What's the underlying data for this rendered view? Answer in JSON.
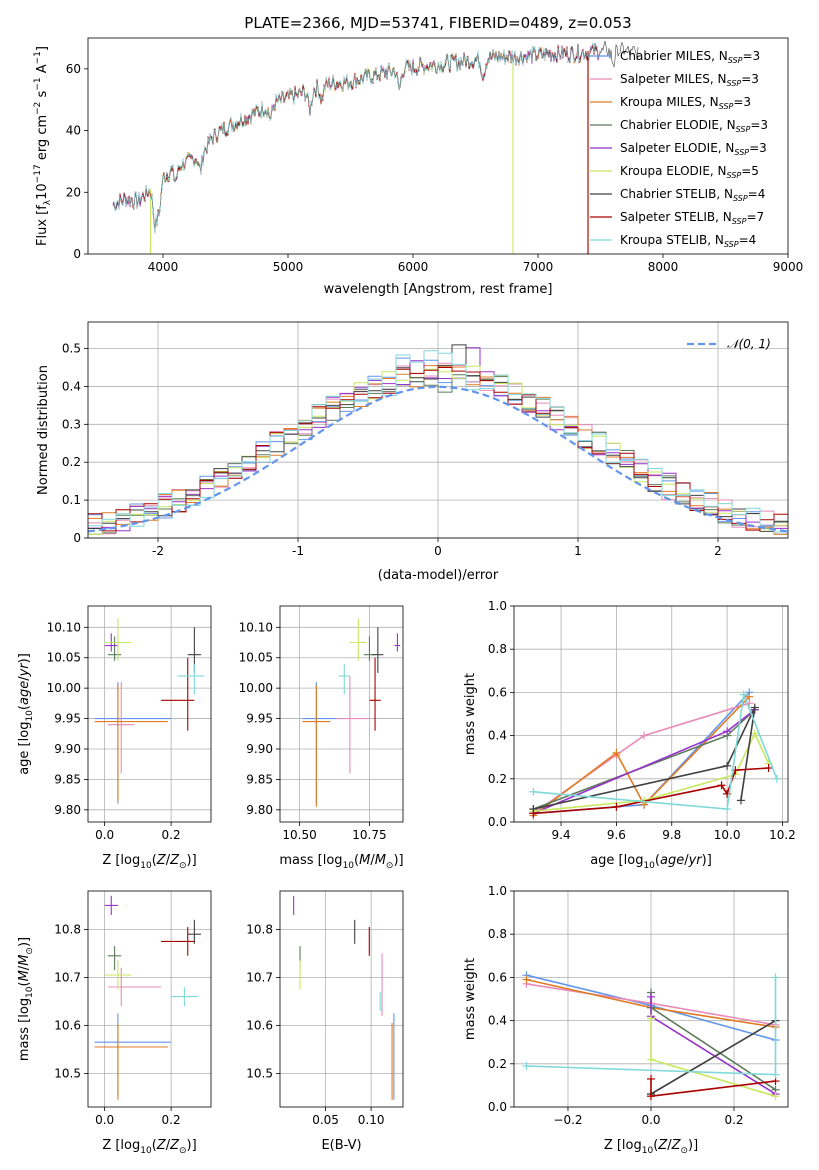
{
  "page": {
    "title": "PLATE=2366, MJD=53741, FIBERID=0489, z=0.053"
  },
  "colors": {
    "series": [
      "#6495ED",
      "#E88BB8",
      "#E07B24",
      "#5B7B5B",
      "#9932CC",
      "#C8E860",
      "#404040",
      "#AA0000",
      "#80D8D8"
    ]
  },
  "chart_data": [
    {
      "id": "spectrum",
      "type": "line",
      "title": "PLATE=2366, MJD=53741, FIBERID=0489, z=0.053",
      "xlabel": "wavelength [Angstrom, rest frame]",
      "ylabel_parts": [
        "Flux [f",
        "λ",
        "10",
        "−17",
        " erg cm",
        "−2",
        " s",
        "−1",
        " A",
        "−1",
        "]"
      ],
      "xlim": [
        3400,
        9000
      ],
      "ylim": [
        0,
        70
      ],
      "xticks": [
        4000,
        5000,
        6000,
        7000,
        8000,
        9000
      ],
      "yticks": [
        0,
        20,
        40,
        60
      ],
      "grid": false,
      "legend_position": "top-right",
      "continuum": [
        [
          3600,
          16
        ],
        [
          3700,
          18
        ],
        [
          3800,
          17
        ],
        [
          3900,
          21
        ],
        [
          3950,
          18
        ],
        [
          4000,
          25
        ],
        [
          4100,
          28
        ],
        [
          4200,
          30
        ],
        [
          4300,
          32
        ],
        [
          4400,
          38
        ],
        [
          4500,
          41
        ],
        [
          4700,
          45
        ],
        [
          4900,
          49
        ],
        [
          5100,
          52
        ],
        [
          5300,
          55
        ],
        [
          5500,
          56
        ],
        [
          5700,
          58
        ],
        [
          5900,
          60
        ],
        [
          6100,
          61
        ],
        [
          6300,
          62
        ],
        [
          6500,
          63
        ],
        [
          6700,
          64
        ],
        [
          6900,
          64
        ],
        [
          7100,
          65
        ],
        [
          7300,
          65
        ],
        [
          7500,
          66
        ],
        [
          7700,
          66
        ],
        [
          7800,
          65
        ]
      ],
      "series": [
        {
          "name": "Chabrier MILES",
          "nssp": "3",
          "x_range": [
            3600,
            7500
          ],
          "drops": []
        },
        {
          "name": "Salpeter MILES",
          "nssp": "3",
          "x_range": [
            3600,
            7500
          ],
          "drops": []
        },
        {
          "name": "Kroupa MILES",
          "nssp": "3",
          "x_range": [
            3600,
            7500
          ],
          "drops": [
            7400
          ]
        },
        {
          "name": "Chabrier ELODIE",
          "nssp": "3",
          "x_range": [
            3600,
            7500
          ],
          "drops": []
        },
        {
          "name": "Salpeter ELODIE",
          "nssp": "3",
          "x_range": [
            3600,
            7500
          ],
          "drops": []
        },
        {
          "name": "Kroupa ELODIE",
          "nssp": "5",
          "x_range": [
            3900,
            6800
          ],
          "drops": [
            3900,
            6800
          ]
        },
        {
          "name": "Chabrier STELIB",
          "nssp": "4",
          "x_range": [
            3600,
            7800
          ],
          "drops": []
        },
        {
          "name": "Salpeter STELIB",
          "nssp": "7",
          "x_range": [
            3600,
            7500
          ],
          "drops": [
            7400
          ]
        },
        {
          "name": "Kroupa STELIB",
          "nssp": "4",
          "x_range": [
            3600,
            7500
          ],
          "drops": []
        }
      ]
    },
    {
      "id": "residuals",
      "type": "histogram",
      "xlabel": "(data-model)/error",
      "ylabel": "Normed distribution",
      "xlim": [
        -2.5,
        2.5
      ],
      "ylim": [
        0,
        0.57
      ],
      "xticks": [
        -2,
        -1,
        0,
        1,
        2
      ],
      "yticks": [
        0.0,
        0.1,
        0.2,
        0.3,
        0.4,
        0.5
      ],
      "grid": true,
      "legend_position": "top-right",
      "reference_curve": {
        "name": "𝒩(0, 1)",
        "style": "dashed",
        "color": "#6495ED"
      },
      "bin_edges_start": -2.5,
      "bin_width": 0.1,
      "bin_count": 50
    },
    {
      "id": "age-vs-Z",
      "type": "scatter",
      "xlabel": "Z [log10(Z/Z⊙)]",
      "ylabel": "age  [log10(age/yr)]",
      "xlim": [
        -0.05,
        0.32
      ],
      "ylim": [
        9.78,
        10.135
      ],
      "xticks": [
        0.0,
        0.2
      ],
      "xtick_labels": [
        "0.0",
        "0.2"
      ],
      "yticks": [
        9.8,
        9.85,
        9.9,
        9.95,
        10.0,
        10.05,
        10.1
      ],
      "ytick_labels": [
        "9.80",
        "9.85",
        "9.90",
        "9.95",
        "10.00",
        "10.05",
        "10.10"
      ],
      "grid": true,
      "points": [
        {
          "x": 0.04,
          "y": 9.95,
          "xerr": [
            0.07,
            0.16
          ],
          "yerr": [
            0.14,
            0.06
          ]
        },
        {
          "x": 0.05,
          "y": 9.94,
          "xerr": [
            0.04,
            0.04
          ],
          "yerr": [
            0.08,
            0.07
          ]
        },
        {
          "x": 0.04,
          "y": 9.945,
          "xerr": [
            0.07,
            0.15
          ],
          "yerr": [
            0.13,
            0.06
          ]
        },
        {
          "x": 0.03,
          "y": 10.055,
          "xerr": [
            0.02,
            0.02
          ],
          "yerr": [
            0.01,
            0.03
          ]
        },
        {
          "x": 0.02,
          "y": 10.07,
          "xerr": [
            0.02,
            0.02
          ],
          "yerr": [
            0.01,
            0.02
          ]
        },
        {
          "x": 0.04,
          "y": 10.075,
          "xerr": [
            0.04,
            0.04
          ],
          "yerr": [
            0.03,
            0.04
          ]
        },
        {
          "x": 0.27,
          "y": 10.055,
          "xerr": [
            0.02,
            0.02
          ],
          "yerr": [
            0.03,
            0.045
          ]
        },
        {
          "x": 0.25,
          "y": 9.98,
          "xerr": [
            0.08,
            0.02
          ],
          "yerr": [
            0.05,
            0.07
          ]
        },
        {
          "x": 0.27,
          "y": 10.02,
          "xerr": [
            0.05,
            0.03
          ],
          "yerr": [
            0.03,
            0.02
          ]
        }
      ]
    },
    {
      "id": "age-vs-mass",
      "type": "scatter",
      "xlabel": "mass [log10(M/M⊙)]",
      "ylabel": "",
      "xlim": [
        10.43,
        10.87
      ],
      "ylim": [
        9.78,
        10.135
      ],
      "xticks": [
        10.5,
        10.75
      ],
      "xtick_labels": [
        "10.50",
        "10.75"
      ],
      "yticks": [
        9.8,
        9.85,
        9.9,
        9.95,
        10.0,
        10.05,
        10.1
      ],
      "ytick_labels": [
        "9.80",
        "9.85",
        "9.90",
        "9.95",
        "10.00",
        "10.05",
        "10.10"
      ],
      "grid": true,
      "points": [
        {
          "x": 10.56,
          "y": 9.95,
          "xerr": [
            0.05,
            0.07
          ],
          "yerr": [
            0.14,
            0.06
          ]
        },
        {
          "x": 10.68,
          "y": 9.95,
          "xerr": [
            0.05,
            0.07
          ],
          "yerr": [
            0.09,
            0.07
          ]
        },
        {
          "x": 10.56,
          "y": 9.945,
          "xerr": [
            0.05,
            0.05
          ],
          "yerr": [
            0.14,
            0.06
          ]
        },
        {
          "x": 10.75,
          "y": 10.055,
          "xerr": [
            0.02,
            0.02
          ],
          "yerr": [
            0.01,
            0.03
          ]
        },
        {
          "x": 10.85,
          "y": 10.07,
          "xerr": [
            0.01,
            0.01
          ],
          "yerr": [
            0.01,
            0.02
          ]
        },
        {
          "x": 10.71,
          "y": 10.075,
          "xerr": [
            0.03,
            0.03
          ],
          "yerr": [
            0.03,
            0.04
          ]
        },
        {
          "x": 10.78,
          "y": 10.055,
          "xerr": [
            0.02,
            0.02
          ],
          "yerr": [
            0.03,
            0.045
          ]
        },
        {
          "x": 10.77,
          "y": 9.98,
          "xerr": [
            0.02,
            0.02
          ],
          "yerr": [
            0.05,
            0.07
          ]
        },
        {
          "x": 10.66,
          "y": 10.02,
          "xerr": [
            0.02,
            0.02
          ],
          "yerr": [
            0.03,
            0.02
          ]
        }
      ]
    },
    {
      "id": "weight-vs-age",
      "type": "line",
      "xlabel": "age  [log10(age/yr)]",
      "ylabel": "mass weight",
      "xlim": [
        9.23,
        10.22
      ],
      "ylim": [
        0.0,
        1.0
      ],
      "xticks": [
        9.4,
        9.6,
        9.8,
        10.0,
        10.2
      ],
      "xtick_labels": [
        "9.4",
        "9.6",
        "9.8",
        "10.0",
        "10.2"
      ],
      "yticks": [
        0.0,
        0.2,
        0.4,
        0.6,
        0.8,
        1.0
      ],
      "ytick_labels": [
        "0.0",
        "0.2",
        "0.4",
        "0.6",
        "0.8",
        "1.0"
      ],
      "grid": true,
      "series": [
        {
          "x": [
            9.3,
            9.7,
            10.08
          ],
          "y": [
            0.04,
            0.08,
            0.6
          ]
        },
        {
          "x": [
            9.3,
            9.6,
            9.7,
            10.08
          ],
          "y": [
            0.04,
            0.31,
            0.4,
            0.55
          ]
        },
        {
          "x": [
            9.3,
            9.6,
            9.7,
            10.08
          ],
          "y": [
            0.03,
            0.32,
            0.08,
            0.58
          ]
        },
        {
          "x": [
            9.3,
            10.0,
            10.1
          ],
          "y": [
            0.06,
            0.4,
            0.52
          ]
        },
        {
          "x": [
            9.3,
            10.0,
            10.1
          ],
          "y": [
            0.04,
            0.42,
            0.52
          ]
        },
        {
          "x": [
            9.3,
            9.7,
            10.03,
            10.1,
            10.15
          ],
          "y": [
            0.05,
            0.1,
            0.22,
            0.41,
            0.27
          ]
        },
        {
          "x": [
            9.3,
            10.0,
            10.1,
            10.05
          ],
          "y": [
            0.06,
            0.26,
            0.53,
            0.1
          ]
        },
        {
          "x": [
            9.3,
            9.6,
            9.98,
            10.0,
            10.03,
            10.15
          ],
          "y": [
            0.04,
            0.07,
            0.17,
            0.13,
            0.24,
            0.25
          ]
        },
        {
          "x": [
            9.3,
            10.0,
            10.06,
            10.18
          ],
          "y": [
            0.14,
            0.06,
            0.59,
            0.2
          ]
        }
      ]
    },
    {
      "id": "mass-vs-Z",
      "type": "scatter",
      "xlabel": "Z [log10(Z/Z⊙)]",
      "ylabel": "mass [log10(M/M⊙)]",
      "xlim": [
        -0.05,
        0.32
      ],
      "ylim": [
        10.43,
        10.88
      ],
      "xticks": [
        0.0,
        0.2
      ],
      "xtick_labels": [
        "0.0",
        "0.2"
      ],
      "yticks": [
        10.5,
        10.6,
        10.7,
        10.8
      ],
      "ytick_labels": [
        "10.5",
        "10.6",
        "10.7",
        "10.8"
      ],
      "grid": true,
      "points": [
        {
          "x": 0.04,
          "y": 10.565,
          "xerr": [
            0.07,
            0.16
          ],
          "yerr": [
            0.11,
            0.06
          ]
        },
        {
          "x": 0.05,
          "y": 10.68,
          "xerr": [
            0.04,
            0.12
          ],
          "yerr": [
            0.04,
            0.04
          ]
        },
        {
          "x": 0.04,
          "y": 10.555,
          "xerr": [
            0.07,
            0.15
          ],
          "yerr": [
            0.11,
            0.05
          ]
        },
        {
          "x": 0.03,
          "y": 10.745,
          "xerr": [
            0.02,
            0.02
          ],
          "yerr": [
            0.03,
            0.02
          ]
        },
        {
          "x": 0.02,
          "y": 10.85,
          "xerr": [
            0.02,
            0.02
          ],
          "yerr": [
            0.02,
            0.02
          ]
        },
        {
          "x": 0.04,
          "y": 10.705,
          "xerr": [
            0.04,
            0.04
          ],
          "yerr": [
            0.03,
            0.03
          ]
        },
        {
          "x": 0.27,
          "y": 10.79,
          "xerr": [
            0.02,
            0.02
          ],
          "yerr": [
            0.02,
            0.03
          ]
        },
        {
          "x": 0.25,
          "y": 10.775,
          "xerr": [
            0.08,
            0.02
          ],
          "yerr": [
            0.03,
            0.03
          ]
        },
        {
          "x": 0.24,
          "y": 10.66,
          "xerr": [
            0.04,
            0.04
          ],
          "yerr": [
            0.02,
            0.02
          ]
        }
      ]
    },
    {
      "id": "mass-vs-ebv",
      "type": "scatter",
      "xlabel": "E(B-V)",
      "ylabel": "",
      "xlim": [
        0.0,
        0.135
      ],
      "ylim": [
        10.43,
        10.88
      ],
      "xticks": [
        0.05,
        0.1
      ],
      "xtick_labels": [
        "0.05",
        "0.10"
      ],
      "yticks": [
        10.5,
        10.6,
        10.7,
        10.8
      ],
      "ytick_labels": [
        "10.5",
        "10.6",
        "10.7",
        "10.8"
      ],
      "grid": true,
      "points": [
        {
          "x": 0.125,
          "y": 10.565,
          "xerr": [
            0,
            0
          ],
          "yerr": [
            0.12,
            0.06
          ]
        },
        {
          "x": 0.112,
          "y": 10.68,
          "xerr": [
            0,
            0
          ],
          "yerr": [
            0.06,
            0.07
          ]
        },
        {
          "x": 0.123,
          "y": 10.555,
          "xerr": [
            0,
            0
          ],
          "yerr": [
            0.11,
            0.05
          ]
        },
        {
          "x": 0.022,
          "y": 10.745,
          "xerr": [
            0,
            0
          ],
          "yerr": [
            0.03,
            0.02
          ]
        },
        {
          "x": 0.015,
          "y": 10.85,
          "xerr": [
            0,
            0
          ],
          "yerr": [
            0.02,
            0.02
          ]
        },
        {
          "x": 0.022,
          "y": 10.705,
          "xerr": [
            0,
            0
          ],
          "yerr": [
            0.03,
            0.03
          ]
        },
        {
          "x": 0.082,
          "y": 10.79,
          "xerr": [
            0,
            0
          ],
          "yerr": [
            0.02,
            0.03
          ]
        },
        {
          "x": 0.098,
          "y": 10.775,
          "xerr": [
            0,
            0
          ],
          "yerr": [
            0.03,
            0.03
          ]
        },
        {
          "x": 0.11,
          "y": 10.65,
          "xerr": [
            0,
            0
          ],
          "yerr": [
            0.02,
            0.02
          ]
        }
      ]
    },
    {
      "id": "weight-vs-Z",
      "type": "line",
      "xlabel": "Z [log10(Z/Z⊙)]",
      "ylabel": "mass weight",
      "xlim": [
        -0.33,
        0.33
      ],
      "ylim": [
        0.0,
        1.0
      ],
      "xticks": [
        -0.2,
        0.0,
        0.2
      ],
      "xtick_labels": [
        "−0.2",
        "0.0",
        "0.2"
      ],
      "yticks": [
        0.0,
        0.2,
        0.4,
        0.6,
        0.8,
        1.0
      ],
      "ytick_labels": [
        "0.0",
        "0.2",
        "0.4",
        "0.6",
        "0.8",
        "1.0"
      ],
      "grid": true,
      "series": [
        {
          "x": [
            -0.3,
            0.0,
            0.3
          ],
          "y": [
            0.61,
            0.47,
            0.31
          ]
        },
        {
          "x": [
            -0.3,
            0.0,
            0.3
          ],
          "y": [
            0.57,
            0.48,
            0.38
          ]
        },
        {
          "x": [
            -0.3,
            0.0,
            0.3
          ],
          "y": [
            0.59,
            0.46,
            0.37
          ]
        },
        {
          "x": [
            0.0,
            0.0,
            0.3
          ],
          "y": [
            0.53,
            0.46,
            0.08
          ]
        },
        {
          "x": [
            0.0,
            0.0,
            0.3
          ],
          "y": [
            0.51,
            0.42,
            0.06
          ]
        },
        {
          "x": [
            0.0,
            0.0,
            0.3
          ],
          "y": [
            0.41,
            0.22,
            0.05
          ]
        },
        {
          "x": [
            0.0,
            0.0,
            0.3
          ],
          "y": [
            0.06,
            0.06,
            0.4
          ]
        },
        {
          "x": [
            0.0,
            0.0,
            0.3
          ],
          "y": [
            0.13,
            0.05,
            0.12
          ]
        },
        {
          "x": [
            -0.3,
            0.3,
            0.3
          ],
          "y": [
            0.19,
            0.15,
            0.6
          ]
        }
      ]
    }
  ]
}
